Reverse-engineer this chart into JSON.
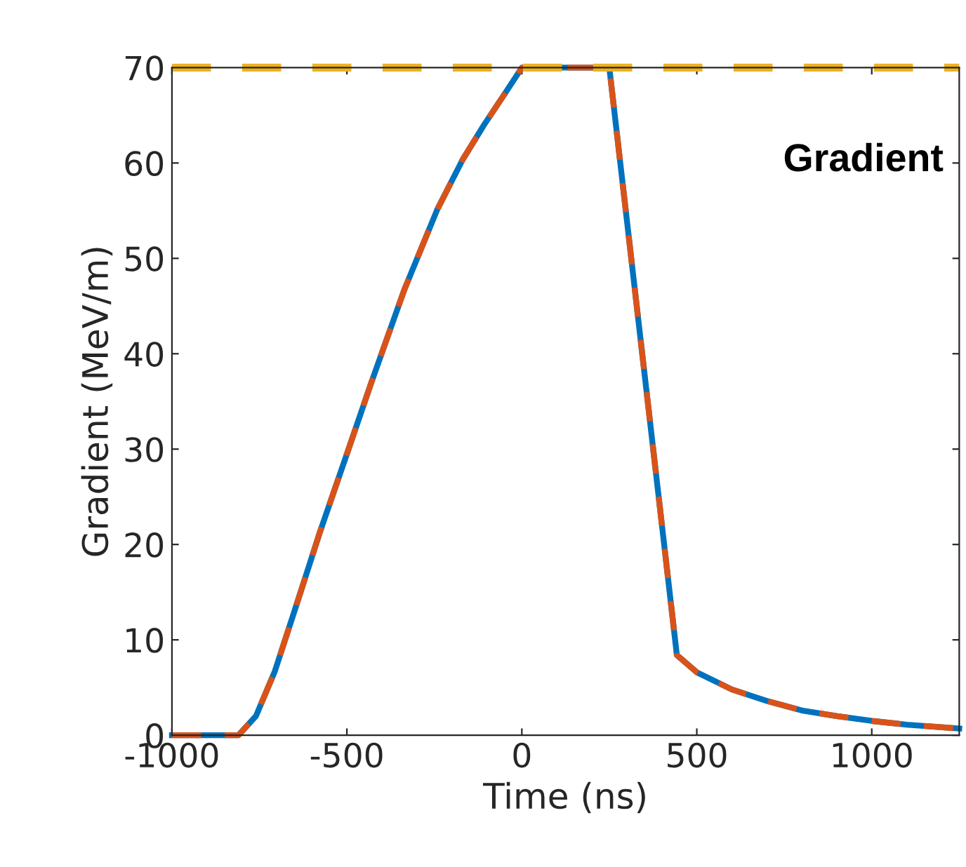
{
  "chart_data": {
    "type": "line",
    "xlabel": "Time (ns)",
    "ylabel": "Gradient (MeV/m)",
    "annotations": [
      "Gradient"
    ],
    "xlim": [
      -1000,
      1250
    ],
    "xticks": [
      -1000,
      -500,
      0,
      500,
      1000
    ],
    "ylim": [
      0,
      70
    ],
    "yticks": [
      0,
      10,
      20,
      30,
      40,
      50,
      60,
      70
    ],
    "grid": false,
    "legend": false,
    "series": [
      {
        "color": "#0072bd",
        "line_style": "solid",
        "x": [
          -1000,
          -810,
          -760,
          -706,
          -650,
          -578,
          -500,
          -430,
          -336,
          -242,
          -170,
          -108,
          -50,
          0,
          250,
          443,
          500,
          600,
          700,
          800,
          900,
          1000,
          1100,
          1250
        ],
        "values": [
          0,
          0,
          2,
          6.7,
          13,
          21.2,
          29.5,
          37,
          46.7,
          55.1,
          60.3,
          64,
          67.2,
          70,
          70,
          8.4,
          6.6,
          4.8,
          3.6,
          2.6,
          2,
          1.5,
          1.1,
          0.7
        ]
      },
      {
        "color": "#d95319",
        "line_style": "dashed",
        "x": [
          -1000,
          -810,
          -760,
          -706,
          -650,
          -578,
          -500,
          -430,
          -336,
          -242,
          -170,
          -108,
          -50,
          0,
          250,
          443,
          500,
          600,
          700,
          800,
          900,
          1000,
          1100,
          1250
        ],
        "values": [
          0,
          0,
          2,
          6.7,
          13,
          21.2,
          29.5,
          37,
          46.7,
          55.1,
          60.3,
          64,
          67.2,
          70,
          70,
          8.4,
          6.6,
          4.8,
          3.6,
          2.6,
          2,
          1.5,
          1.1,
          0.7
        ]
      },
      {
        "color": "#edb120",
        "line_style": "dashed",
        "x": [
          -1000,
          1250
        ],
        "values": [
          70,
          70
        ]
      }
    ]
  }
}
